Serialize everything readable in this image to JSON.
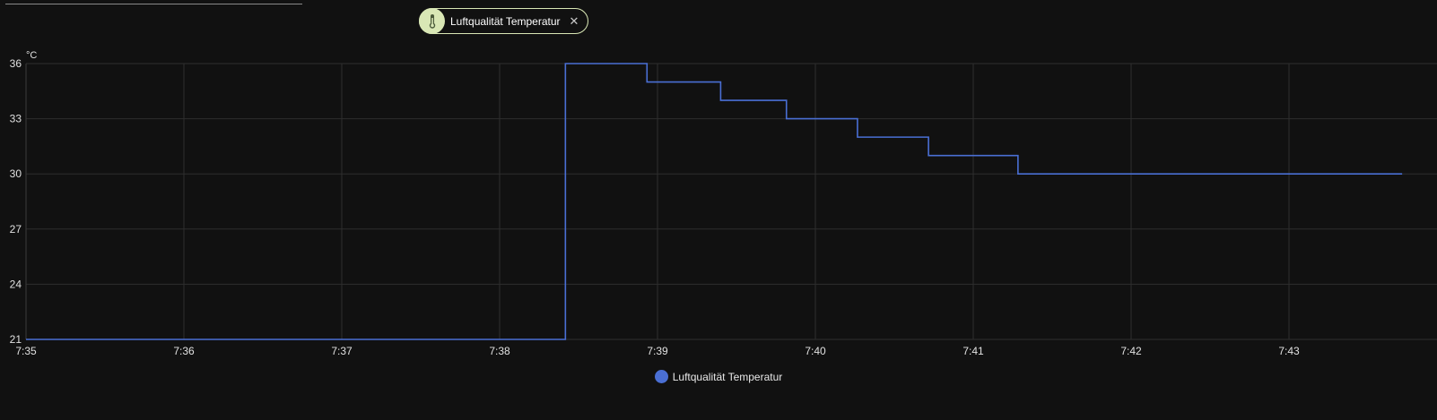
{
  "filter_chip": {
    "label": "Luftqualität Temperatur",
    "icon": "thermometer-icon",
    "close_glyph": "✕",
    "close_icon": "close-icon"
  },
  "colors": {
    "background": "#111111",
    "series": "#4a6fd4",
    "grid": "#2e2e2e",
    "chip_accent": "#d9e7b5",
    "text": "#e1e1e1"
  },
  "chart_data": {
    "type": "line",
    "interpolation": "step-after",
    "unit": "°C",
    "ylim": [
      21,
      36
    ],
    "y_ticks": [
      21,
      24,
      27,
      30,
      33,
      36
    ],
    "x_range": [
      "7:35",
      "7:43:43"
    ],
    "x_ticks": [
      "7:35",
      "7:36",
      "7:37",
      "7:38",
      "7:39",
      "7:40",
      "7:41",
      "7:42",
      "7:43"
    ],
    "grid": true,
    "legend": "bottom-center",
    "series": [
      {
        "name": "Luftqualität Temperatur",
        "points": [
          {
            "x": "7:35:00",
            "y": 21
          },
          {
            "x": "7:38:25",
            "y": 36
          },
          {
            "x": "7:38:56",
            "y": 35
          },
          {
            "x": "7:39:24",
            "y": 34
          },
          {
            "x": "7:39:49",
            "y": 33
          },
          {
            "x": "7:40:16",
            "y": 32
          },
          {
            "x": "7:40:43",
            "y": 31
          },
          {
            "x": "7:41:17",
            "y": 30
          },
          {
            "x": "7:43:43",
            "y": 30
          }
        ]
      }
    ]
  }
}
